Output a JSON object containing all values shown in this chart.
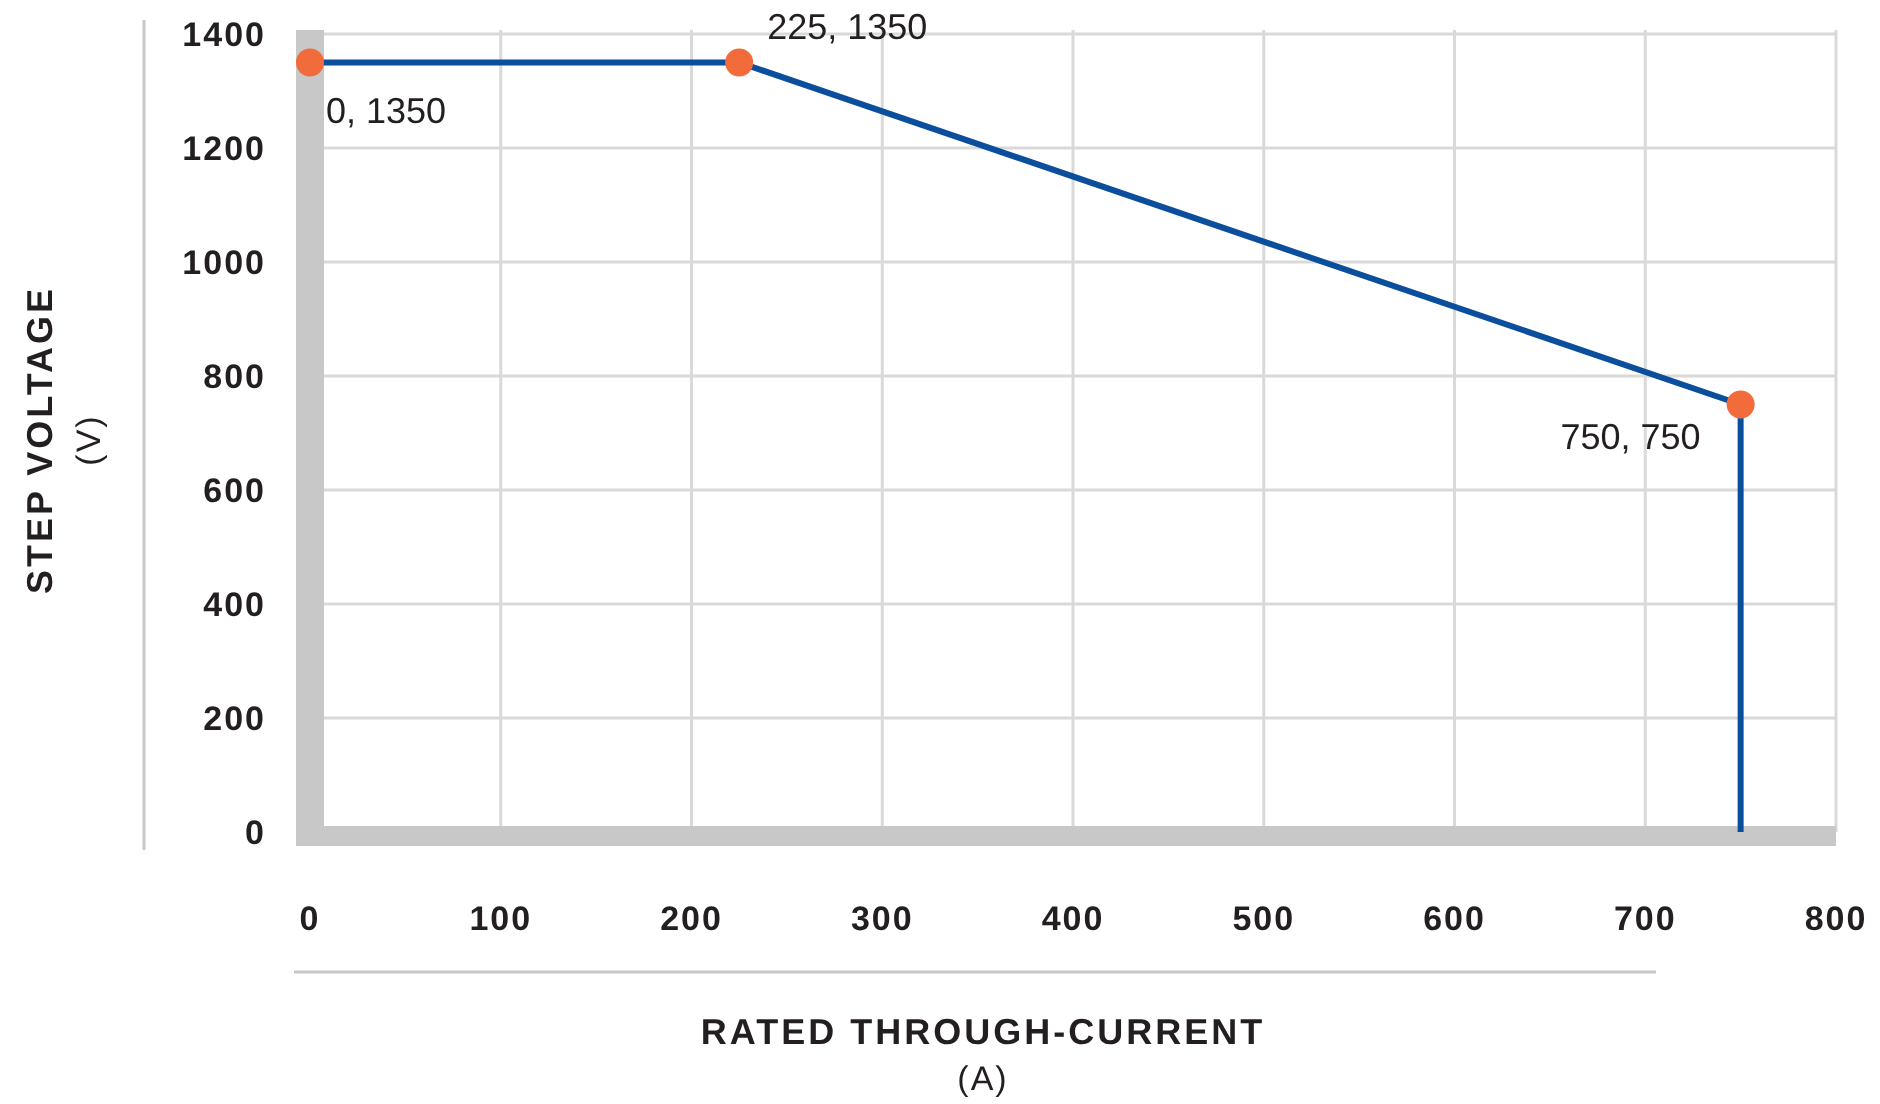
{
  "chart_data": {
    "type": "line",
    "xlabel": "RATED THROUGH-CURRENT\n(A)",
    "ylabel": "STEP VOLTAGE\n(V)",
    "xlim": [
      0,
      800
    ],
    "xticks": [
      0,
      100,
      200,
      300,
      400,
      500,
      600,
      700,
      800
    ],
    "ylim": [
      0,
      1400
    ],
    "yticks": [
      0,
      200,
      400,
      600,
      800,
      1000,
      1200,
      1400
    ],
    "grid": true,
    "series": [
      {
        "type": "line",
        "color": "#0b4f9c",
        "x": [
          0,
          225,
          750,
          750
        ],
        "values": [
          1350,
          1350,
          750,
          0
        ],
        "marker": "none"
      },
      {
        "type": "scatter",
        "color": "#f26b3a",
        "x": [
          0,
          225,
          750
        ],
        "values": [
          1350,
          1350,
          750
        ],
        "marker": "circle"
      }
    ],
    "annotations": [
      {
        "text": "0, 1350",
        "x": 0,
        "y": 1350
      },
      {
        "text": "225, 1350",
        "x": 225,
        "y": 1350
      },
      {
        "text": "750, 750",
        "x": 750,
        "y": 750
      }
    ]
  }
}
